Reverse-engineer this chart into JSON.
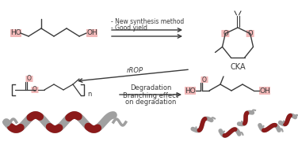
{
  "bg_color": "#ffffff",
  "highlight_color": "#f2b8b8",
  "bond_color": "#3a3a3a",
  "polymer_gray": "#a0a0a0",
  "polymer_red": "#8b1a1a",
  "arrow_color": "#3a3a3a",
  "label_top_line1": "- New synthesis method",
  "label_top_line2": "- Good yield",
  "label_cka": "CKA",
  "label_rrop": "rROP",
  "label_deg_line1": "Degradation",
  "label_deg_line2": "Branching effect",
  "label_deg_line3": "on degradation",
  "label_n": "n",
  "figsize": [
    3.76,
    1.89
  ],
  "dpi": 100
}
